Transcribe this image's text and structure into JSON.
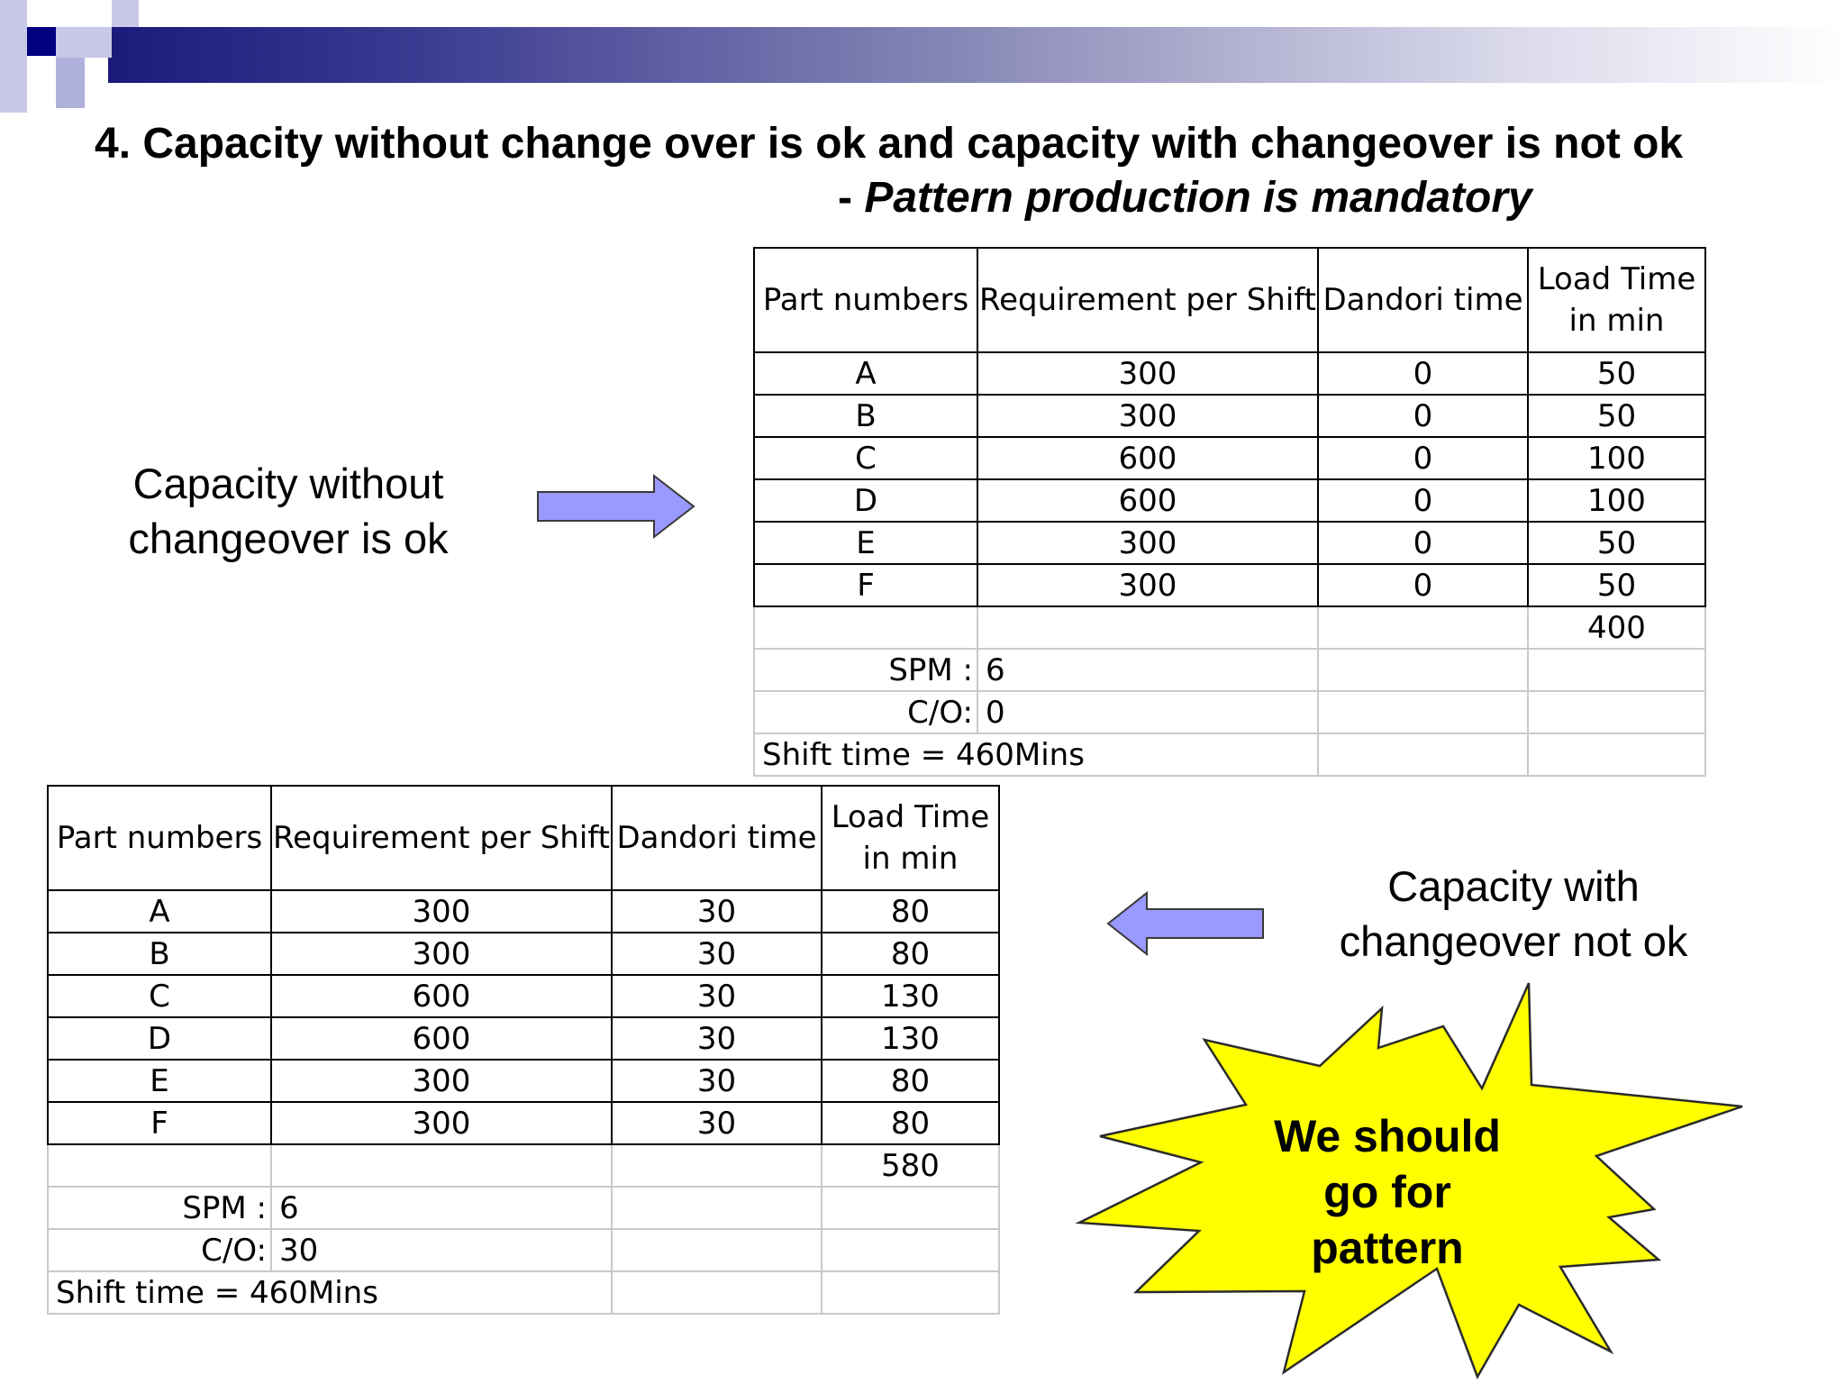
{
  "title": {
    "line1": "4. Capacity without change over is ok and capacity with changeover is not ok",
    "line2_prefix": "- ",
    "line2_emphasis": "Pattern production is mandatory"
  },
  "captions": {
    "without_line1": "Capacity without",
    "without_line2": "changeover is ok",
    "with_line1": "Capacity with",
    "with_line2": "changeover not ok"
  },
  "burst": {
    "line1": "We should",
    "line2": "go for",
    "line3": "pattern"
  },
  "headers": {
    "part": "Part numbers",
    "req": "Requirement per Shift",
    "dandori": "Dandori time",
    "load_line1": "Load Time",
    "load_line2": "in min"
  },
  "table_top": {
    "rows": [
      {
        "part": "A",
        "req": "300",
        "dandori": "0",
        "load": "50"
      },
      {
        "part": "B",
        "req": "300",
        "dandori": "0",
        "load": "50"
      },
      {
        "part": "C",
        "req": "600",
        "dandori": "0",
        "load": "100"
      },
      {
        "part": "D",
        "req": "600",
        "dandori": "0",
        "load": "100"
      },
      {
        "part": "E",
        "req": "300",
        "dandori": "0",
        "load": "50"
      },
      {
        "part": "F",
        "req": "300",
        "dandori": "0",
        "load": "50"
      }
    ],
    "total": "400",
    "spm_label": "SPM :",
    "spm_value": "6",
    "co_label": "C/O:",
    "co_value": "0",
    "shift": "Shift time = 460Mins"
  },
  "table_bottom": {
    "rows": [
      {
        "part": "A",
        "req": "300",
        "dandori": "30",
        "load": "80"
      },
      {
        "part": "B",
        "req": "300",
        "dandori": "30",
        "load": "80"
      },
      {
        "part": "C",
        "req": "600",
        "dandori": "30",
        "load": "130"
      },
      {
        "part": "D",
        "req": "600",
        "dandori": "30",
        "load": "130"
      },
      {
        "part": "E",
        "req": "300",
        "dandori": "30",
        "load": "80"
      },
      {
        "part": "F",
        "req": "300",
        "dandori": "30",
        "load": "80"
      }
    ],
    "total": "580",
    "spm_label": "SPM :",
    "spm_value": "6",
    "co_label": "C/O:",
    "co_value": "30",
    "shift": "Shift time = 460Mins"
  },
  "colors": {
    "arrow_fill": "#9999ff",
    "burst_fill": "#ffff00",
    "band_dark": "#1a1a7a"
  }
}
